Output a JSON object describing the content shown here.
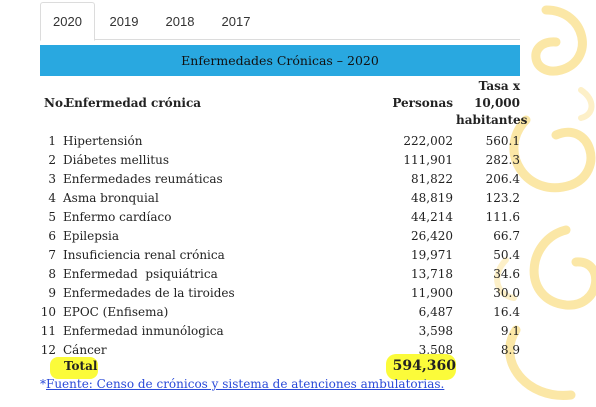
{
  "tabs": [
    {
      "label": "2020",
      "active": true
    },
    {
      "label": "2019",
      "active": false
    },
    {
      "label": "2018",
      "active": false
    },
    {
      "label": "2017",
      "active": false
    }
  ],
  "table": {
    "title": "Enfermedades Crónicas – 2020",
    "headers": {
      "no": "No.",
      "name": "Enfermedad crónica",
      "personas": "Personas",
      "tasa_line1": "Tasa x",
      "tasa_line2": "10,000",
      "tasa_line3": "habitantes"
    },
    "rows": [
      {
        "no": "1",
        "name": "Hipertensión",
        "personas": "222,002",
        "tasa": "560.1"
      },
      {
        "no": "2",
        "name": "Diábetes mellitus",
        "personas": "111,901",
        "tasa": "282.3"
      },
      {
        "no": "3",
        "name": "Enfermedades reumáticas",
        "personas": "81,822",
        "tasa": "206.4"
      },
      {
        "no": "4",
        "name": "Asma bronquial",
        "personas": "48,819",
        "tasa": "123.2"
      },
      {
        "no": "5",
        "name": "Enfermo cardíaco",
        "personas": "44,214",
        "tasa": "111.6"
      },
      {
        "no": "6",
        "name": "Epilepsia",
        "personas": "26,420",
        "tasa": "66.7"
      },
      {
        "no": "7",
        "name": "Insuficiencia renal crónica",
        "personas": "19,971",
        "tasa": "50.4"
      },
      {
        "no": "8",
        "name": "Enfermedad  psiquiátrica",
        "personas": "13,718",
        "tasa": "34.6"
      },
      {
        "no": "9",
        "name": "Enfermedades de la tiroides",
        "personas": "11,900",
        "tasa": "30.0"
      },
      {
        "no": "10",
        "name": "EPOC (Enfisema)",
        "personas": "6,487",
        "tasa": "16.4"
      },
      {
        "no": "11",
        "name": "Enfermedad inmunólogica",
        "personas": "3,598",
        "tasa": "9.1"
      },
      {
        "no": "12",
        "name": "Cáncer",
        "personas": "3,508",
        "tasa": "8.9"
      }
    ],
    "total": {
      "label": "Total",
      "personas": "594,360"
    }
  },
  "footnote": {
    "prefix": "*",
    "link_text": "Fuente: Censo de crónicos y sistema de atenciones ambulatorias."
  },
  "colors": {
    "title_bar": "#29a8e0",
    "highlight": "#fbfb3a",
    "link": "#2a4ad8"
  }
}
